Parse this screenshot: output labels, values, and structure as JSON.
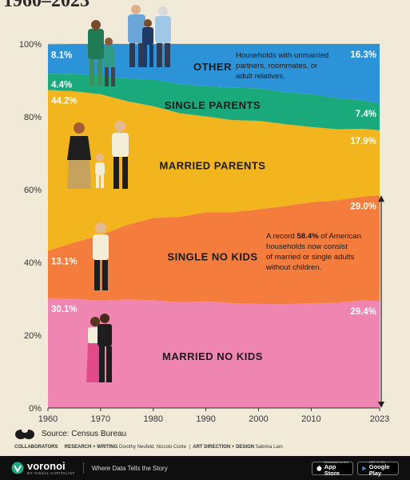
{
  "title": "1960–2023",
  "chart_data": {
    "type": "area",
    "stacked": true,
    "xlim": [
      1960,
      2023
    ],
    "ylim": [
      0,
      100
    ],
    "x_ticks": [
      "1960",
      "1970",
      "1980",
      "1990",
      "2000",
      "2010",
      "2023"
    ],
    "y_ticks": [
      "0%",
      "20%",
      "40%",
      "60%",
      "80%",
      "100%"
    ],
    "series": [
      {
        "name": "MARRIED NO KIDS",
        "color": "#ef86b2",
        "start_label": "30.1%",
        "end_label": "29.4%",
        "points": [
          [
            1960,
            30.1
          ],
          [
            1965,
            30.0
          ],
          [
            1970,
            29.5
          ],
          [
            1975,
            29.8
          ],
          [
            1980,
            29.6
          ],
          [
            1985,
            29.0
          ],
          [
            1990,
            29.3
          ],
          [
            1995,
            28.8
          ],
          [
            2000,
            28.6
          ],
          [
            2005,
            28.5
          ],
          [
            2010,
            28.8
          ],
          [
            2015,
            28.9
          ],
          [
            2020,
            29.6
          ],
          [
            2023,
            29.4
          ]
        ]
      },
      {
        "name": "SINGLE NO KIDS",
        "color": "#f47c3c",
        "start_label": "13.1%",
        "end_label": "29.0%",
        "points": [
          [
            1960,
            13.1
          ],
          [
            1965,
            15.5
          ],
          [
            1970,
            18.0
          ],
          [
            1975,
            20.5
          ],
          [
            1980,
            22.6
          ],
          [
            1985,
            23.5
          ],
          [
            1990,
            24.5
          ],
          [
            1995,
            25.0
          ],
          [
            2000,
            26.0
          ],
          [
            2005,
            27.0
          ],
          [
            2010,
            27.7
          ],
          [
            2015,
            28.2
          ],
          [
            2020,
            28.5
          ],
          [
            2023,
            29.0
          ]
        ]
      },
      {
        "name": "MARRIED PARENTS",
        "color": "#f2b51e",
        "start_label": "44.2%",
        "end_label": "17.9%",
        "points": [
          [
            1960,
            44.2
          ],
          [
            1965,
            41.5
          ],
          [
            1970,
            38.7
          ],
          [
            1975,
            34.0
          ],
          [
            1980,
            30.7
          ],
          [
            1985,
            28.5
          ],
          [
            1990,
            26.3
          ],
          [
            1995,
            25.3
          ],
          [
            2000,
            24.3
          ],
          [
            2005,
            22.5
          ],
          [
            2010,
            20.7
          ],
          [
            2015,
            19.5
          ],
          [
            2020,
            18.6
          ],
          [
            2023,
            17.9
          ]
        ]
      },
      {
        "name": "SINGLE PARENTS",
        "color": "#1aa97a",
        "start_label": "4.4%",
        "end_label": "7.4%",
        "points": [
          [
            1960,
            4.4
          ],
          [
            1965,
            4.8
          ],
          [
            1970,
            5.2
          ],
          [
            1975,
            6.2
          ],
          [
            1980,
            7.4
          ],
          [
            1985,
            8.0
          ],
          [
            1990,
            8.3
          ],
          [
            1995,
            8.9
          ],
          [
            2000,
            8.9
          ],
          [
            2005,
            8.8
          ],
          [
            2010,
            9.0
          ],
          [
            2015,
            8.5
          ],
          [
            2020,
            7.8
          ],
          [
            2023,
            7.4
          ]
        ]
      },
      {
        "name": "OTHER",
        "color": "#2c93d8",
        "start_label": "8.1%",
        "end_label": "16.3%",
        "points": [
          [
            1960,
            8.1
          ],
          [
            1965,
            8.2
          ],
          [
            1970,
            8.6
          ],
          [
            1975,
            9.5
          ],
          [
            1980,
            9.7
          ],
          [
            1985,
            11.0
          ],
          [
            1990,
            11.6
          ],
          [
            1995,
            12.0
          ],
          [
            2000,
            12.2
          ],
          [
            2005,
            13.2
          ],
          [
            2010,
            13.8
          ],
          [
            2015,
            14.9
          ],
          [
            2020,
            15.5
          ],
          [
            2023,
            16.3
          ]
        ]
      }
    ],
    "annotations": {
      "other_note": [
        "Households with unmarried",
        "partners, roommates, or",
        "adult relatives."
      ],
      "record_note_pre": "A record ",
      "record_note_bold": "58.4%",
      "record_note_post": " of American",
      "record_note_lines": [
        "households now consist",
        "of married or single adults",
        "without children."
      ],
      "record_value": 58.4
    }
  },
  "source": "Source: Census Bureau",
  "credits": {
    "collaborators": "COLLABORATORS",
    "research_label": "RESEARCH + WRITING",
    "research_names": "Dorothy Neufeld, Niccolo Conte",
    "art_label": "ART DIRECTION + DESIGN",
    "art_names": "Sabrina Lam"
  },
  "footer": {
    "brand": "voronoi",
    "brand_sub": "BY VISUAL CAPITALIST",
    "tagline": "Where Data Tells the Story",
    "app_store_small": "Download on the",
    "app_store_big": "App Store",
    "google_play_small": "GET IT ON",
    "google_play_big": "Google Play",
    "bg_color": "#0f0f0f"
  }
}
